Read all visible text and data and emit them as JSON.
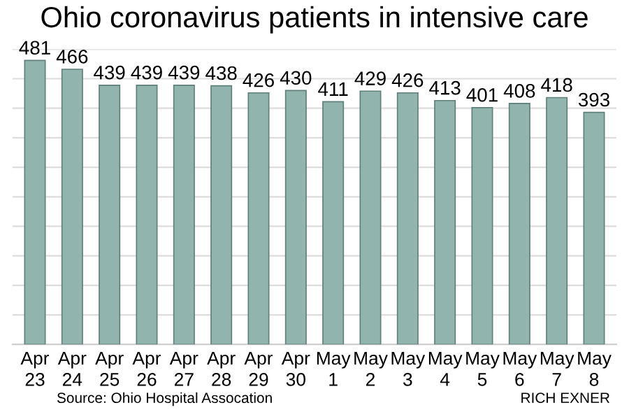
{
  "chart_data": {
    "type": "bar",
    "title": "Ohio coronavirus patients in intensive care",
    "categories": [
      "Apr\n23",
      "Apr\n24",
      "Apr\n25",
      "Apr\n26",
      "Apr\n27",
      "Apr\n28",
      "Apr\n29",
      "Apr\n30",
      "May\n1",
      "May\n2",
      "May\n3",
      "May\n4",
      "May\n5",
      "May\n6",
      "May\n7",
      "May\n8"
    ],
    "values": [
      481,
      466,
      439,
      439,
      439,
      438,
      426,
      430,
      411,
      429,
      426,
      413,
      401,
      408,
      418,
      393
    ],
    "color": "#92b4ae",
    "data_labels": true,
    "grid": "y",
    "ylim": [
      0,
      500
    ],
    "yticks": [
      {
        "value": 0,
        "label": null
      },
      {
        "value": 50,
        "label": null
      },
      {
        "value": 100,
        "label": null
      },
      {
        "value": 150,
        "label": null
      },
      {
        "value": 200,
        "label": null
      },
      {
        "value": 250,
        "label": null
      },
      {
        "value": 300,
        "label": null
      },
      {
        "value": 350,
        "label": null
      },
      {
        "value": 400,
        "label": null
      },
      {
        "value": 450,
        "label": null
      },
      {
        "value": 500,
        "label": null
      }
    ],
    "tick_labels": "x",
    "annotations": [
      "Source: Ohio Hospital Assocation",
      "RICH EXNER"
    ]
  }
}
